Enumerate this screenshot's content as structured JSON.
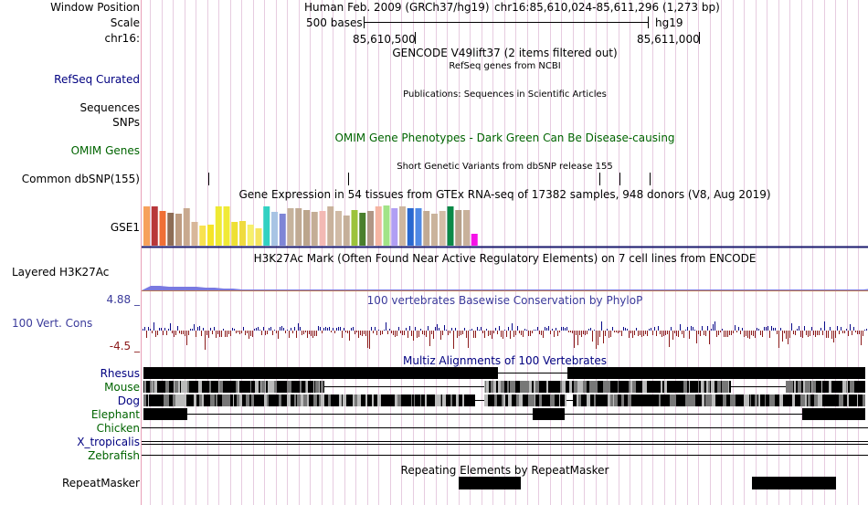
{
  "header": {
    "window_position_label": "Window Position",
    "scale_label": "Scale",
    "chrom_label": "chr16:",
    "assembly_title": "Human Feb. 2009 (GRCh37/hg19)",
    "position": "chr16:85,610,024-85,611,296 (1,273 bp)",
    "scale_text": "500 bases",
    "db": "hg19",
    "coord_left": "85,610,500",
    "coord_right": "85,611,000"
  },
  "tracks": {
    "gencode_title": "GENCODE V49lift37 (2 items filtered out)",
    "refseq_sub": "RefSeq genes from NCBI",
    "refseq_label": "RefSeq Curated",
    "publications_title": "Publications: Sequences in Scientific Articles",
    "sequences_label": "Sequences",
    "snps_label": "SNPs",
    "omim_label": "OMIM Genes",
    "omim_title": "OMIM Gene Phenotypes - Dark Green Can Be Disease-causing",
    "dbsnp_sub": "Short Genetic Variants from dbSNP release 155",
    "dbsnp_label": "Common dbSNP(155)",
    "gtex_title": "Gene Expression in 54 tissues from GTEx RNA-seq of 17382 samples, 948 donors (V8, Aug 2019)",
    "gtex_label": "GSE1",
    "h3k27ac_label": "Layered H3K27Ac",
    "h3k27ac_title": "H3K27Ac Mark (Often Found Near Active Regulatory Elements) on 7 cell lines from ENCODE",
    "cons_max": "4.88 _",
    "cons_min": "-4.5 _",
    "cons_label": "100 Vert. Cons",
    "cons_title": "100 vertebrates Basewise Conservation by PhyloP",
    "multiz_title": "Multiz Alignments of 100 Vertebrates",
    "repeat_title": "Repeating Elements by RepeatMasker",
    "repeat_label": "RepeatMasker"
  },
  "species": [
    "Rhesus",
    "Mouse",
    "Dog",
    "Elephant",
    "Chicken",
    "X_tropicalis",
    "Zebrafish"
  ],
  "colors": {
    "navy": "#000080",
    "green": "#006400",
    "phylop": "#3b3b9b",
    "gridline": "#e7cce0",
    "conserved": "#0a0a8a",
    "nonconserved": "#8b1a1a",
    "h3k27ac": "#7a7ae0"
  },
  "gtex_colors": [
    "#f6a15b",
    "#b8373a",
    "#f06f35",
    "#8e6d56",
    "#bd9b80",
    "#c8a98f",
    "#d8b79a",
    "#f8e24f",
    "#f5e428",
    "#eee933",
    "#f0ea36",
    "#eee033",
    "#efdb3f",
    "#f7f06a",
    "#f5e55e",
    "#31d1c2",
    "#a8c4e4",
    "#7f85d6",
    "#c6b39c",
    "#c0aa93",
    "#bba58c",
    "#c4ad96",
    "#f3b9b4",
    "#c9b29c",
    "#d1bba6",
    "#c5af99",
    "#9cc33b",
    "#4a7f2c",
    "#b09685",
    "#f5b5a2",
    "#a1e487",
    "#b09ef4",
    "#cdb69f",
    "#2868d0",
    "#4f89e5",
    "#c1aa93",
    "#cab39c",
    "#d4bda7",
    "#0a8947",
    "#b6a08a",
    "#c8b19b",
    "#f512e8"
  ],
  "gtex_heights": [
    0.95,
    0.95,
    0.85,
    0.8,
    0.78,
    0.9,
    0.58,
    0.48,
    0.52,
    0.95,
    0.95,
    0.58,
    0.6,
    0.52,
    0.42,
    0.95,
    0.82,
    0.78,
    0.92,
    0.92,
    0.86,
    0.82,
    0.84,
    0.96,
    0.84,
    0.74,
    0.86,
    0.8,
    0.84,
    0.96,
    0.98,
    0.92,
    0.95,
    0.9,
    0.9,
    0.84,
    0.78,
    0.84,
    0.95,
    0.86,
    0.86,
    0.28
  ]
}
